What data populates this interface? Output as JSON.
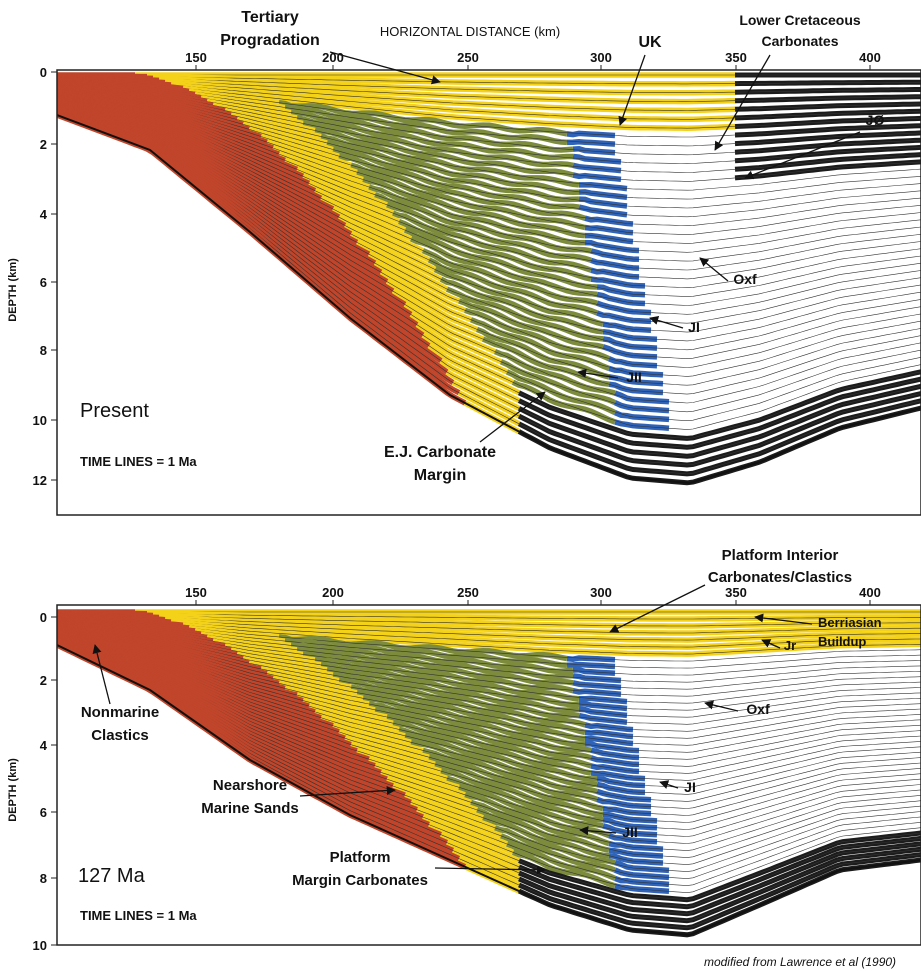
{
  "panels": [
    {
      "x_axis_title": "HORIZONTAL DISTANCE (km)",
      "y_axis_title": "DEPTH (km)",
      "xticks": [
        "150",
        "200",
        "250",
        "300",
        "350",
        "400"
      ],
      "yticks": [
        "0",
        "2",
        "4",
        "6",
        "8",
        "10",
        "12"
      ],
      "labels": [
        {
          "lines": [
            "Tertiary",
            "Progradation"
          ]
        },
        {
          "lines": [
            "UK"
          ]
        },
        {
          "lines": [
            "Lower Cretaceous",
            "Carbonates"
          ]
        },
        {
          "lines": [
            "JØ"
          ]
        },
        {
          "lines": [
            "Oxf"
          ]
        },
        {
          "lines": [
            "JI"
          ]
        },
        {
          "lines": [
            "JII"
          ]
        },
        {
          "lines": [
            "Present"
          ]
        },
        {
          "lines": [
            "TIME LINES = 1 Ma"
          ]
        },
        {
          "lines": [
            "E.J. Carbonate",
            "Margin"
          ]
        }
      ]
    },
    {
      "y_axis_title": "DEPTH (km)",
      "xticks": [
        "150",
        "200",
        "250",
        "300",
        "350",
        "400"
      ],
      "yticks": [
        "0",
        "2",
        "4",
        "6",
        "8",
        "10"
      ],
      "labels": [
        {
          "lines": [
            "Platform Interior",
            "Carbonates/Clastics"
          ]
        },
        {
          "lines": [
            "Berriasian",
            "Buildup"
          ]
        },
        {
          "lines": [
            "Jr"
          ]
        },
        {
          "lines": [
            "Oxf"
          ]
        },
        {
          "lines": [
            "JI"
          ]
        },
        {
          "lines": [
            "JII"
          ]
        },
        {
          "lines": [
            "Nonmarine",
            "Clastics"
          ]
        },
        {
          "lines": [
            "Nearshore",
            "Marine Sands"
          ]
        },
        {
          "lines": [
            "Platform",
            "Margin Carbonates"
          ]
        },
        {
          "lines": [
            "127 Ma"
          ]
        },
        {
          "lines": [
            "TIME LINES = 1 Ma"
          ]
        }
      ]
    }
  ],
  "credit": "modified from Lawrence et al (1990)"
}
